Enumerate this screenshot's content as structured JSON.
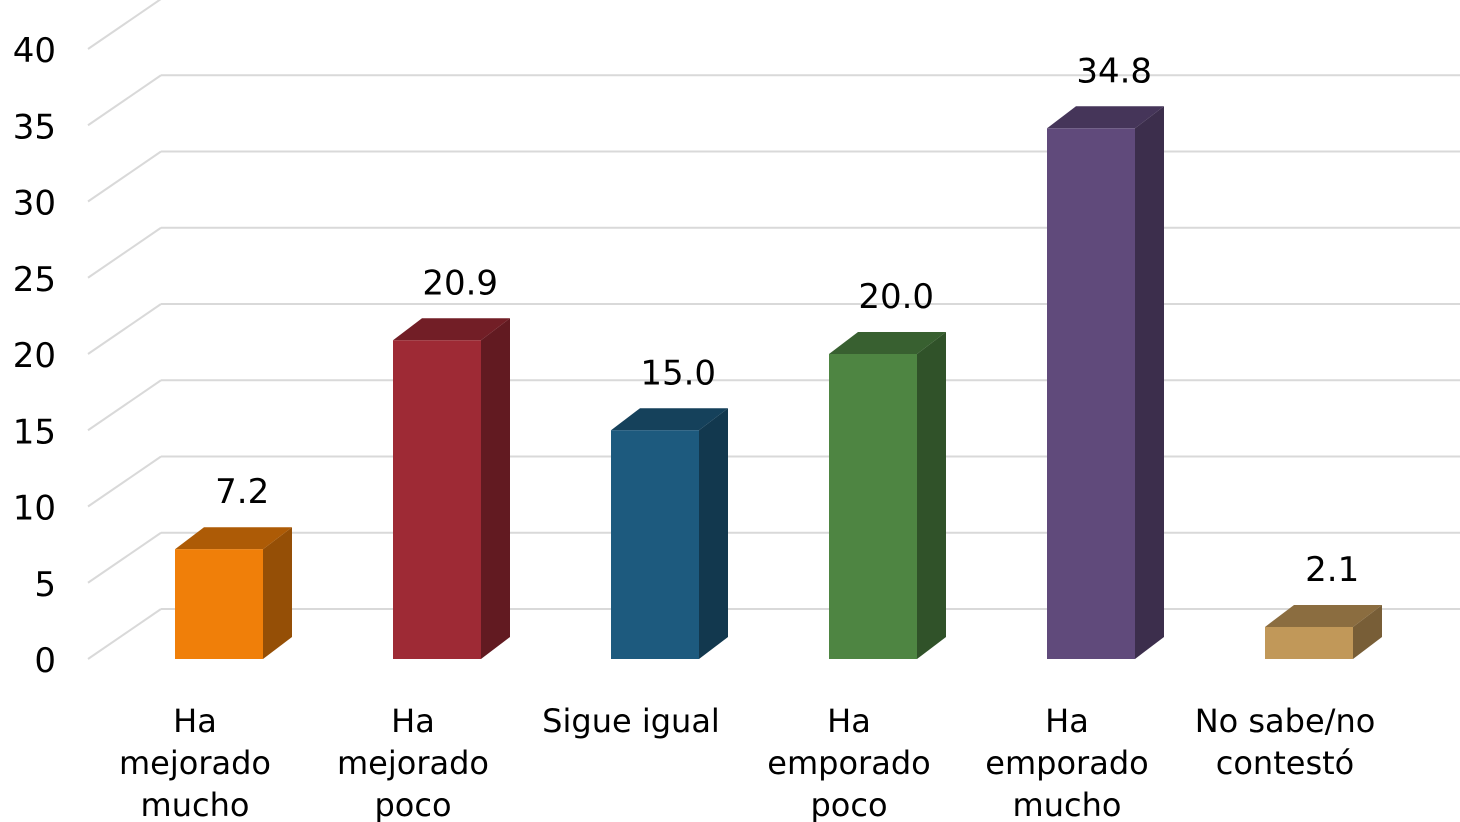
{
  "chart_data": {
    "type": "bar",
    "categories": [
      "Ha mejorado mucho",
      "Ha mejorado poco",
      "Sigue igual",
      "Ha emporado poco",
      "Ha emporado mucho",
      "No sabe/no contestó"
    ],
    "category_lines": [
      [
        "Ha",
        "mejorado",
        "mucho"
      ],
      [
        "Ha",
        "mejorado",
        "poco"
      ],
      [
        "Sigue igual"
      ],
      [
        "Ha",
        "emporado",
        "poco"
      ],
      [
        "Ha",
        "emporado",
        "mucho"
      ],
      [
        "No sabe/no",
        "contestó"
      ]
    ],
    "values": [
      7.2,
      20.9,
      15.0,
      20.0,
      34.8,
      2.1
    ],
    "data_labels": [
      "7.2",
      "20.9",
      "15.0",
      "20.0",
      "34.8",
      "2.1"
    ],
    "ylim": [
      0,
      40
    ],
    "yticks": [
      0,
      5,
      10,
      15,
      20,
      25,
      30,
      35,
      40
    ],
    "colors": [
      "#f07f09",
      "#9e2a35",
      "#1d5a7e",
      "#4e8542",
      "#604a7b",
      "#c19859"
    ],
    "grid": true,
    "style": "3d"
  }
}
